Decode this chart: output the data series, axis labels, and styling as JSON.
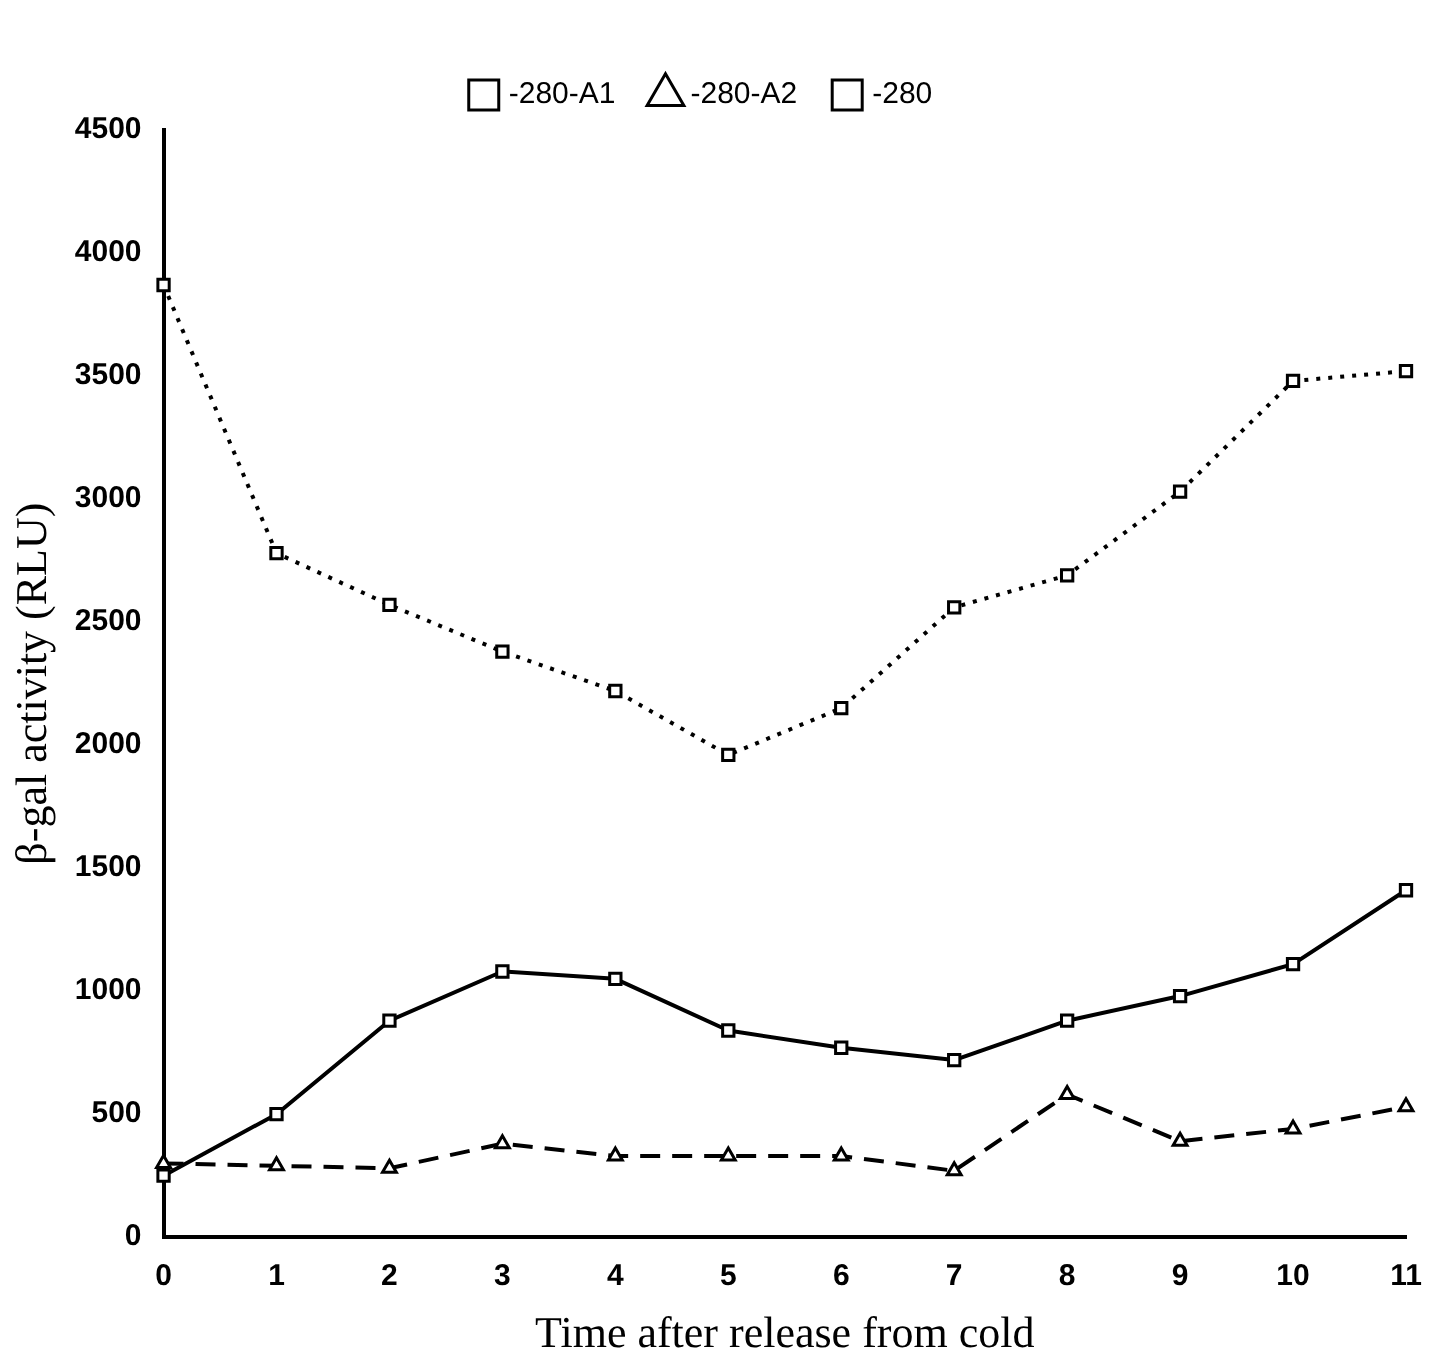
{
  "chart_data": {
    "type": "line",
    "xlabel": "Time after release from cold",
    "ylabel": "β-gal activity (RLU)",
    "categories": [
      "0",
      "1",
      "2",
      "3",
      "4",
      "5",
      "6",
      "7",
      "8",
      "9",
      "10",
      "11"
    ],
    "ylim": [
      0,
      4500
    ],
    "yticks": [
      0,
      500,
      1000,
      1500,
      2000,
      2500,
      3000,
      3500,
      4000,
      4500
    ],
    "grid": false,
    "legend": "top",
    "series": [
      {
        "name": "-280-A1",
        "color": "#000000",
        "marker": "square",
        "line_style": "dotted",
        "values": [
          3870,
          2780,
          2570,
          2380,
          2220,
          1960,
          2150,
          2560,
          2690,
          3030,
          3480,
          3520
        ]
      },
      {
        "name": "-280-A2",
        "color": "#000000",
        "marker": "triangle",
        "line_style": "dashed",
        "values": [
          300,
          290,
          280,
          380,
          330,
          330,
          330,
          270,
          580,
          390,
          440,
          530
        ]
      },
      {
        "name": "-280",
        "color": "#000000",
        "marker": "square",
        "line_style": "solid",
        "values": [
          250,
          500,
          880,
          1080,
          1050,
          840,
          770,
          720,
          880,
          980,
          1110,
          1410
        ]
      }
    ]
  }
}
